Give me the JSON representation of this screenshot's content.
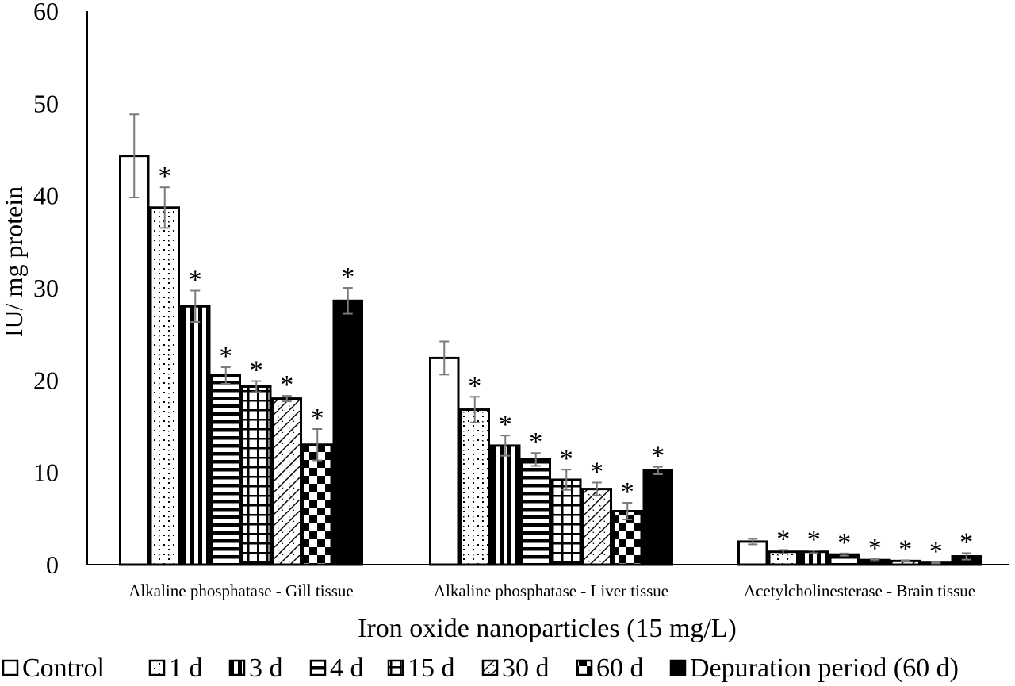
{
  "chart_data": {
    "type": "bar",
    "title": "",
    "xlabel": "Iron oxide nanoparticles (15 mg/L)",
    "ylabel": "IU/ mg protein",
    "ylim": [
      0,
      60
    ],
    "yticks": [
      "0",
      "10",
      "20",
      "30",
      "40",
      "50",
      "60"
    ],
    "grid": false,
    "legend_position": "bottom",
    "categories": [
      "Alkaline phosphatase - Gill tissue",
      "Alkaline phosphatase - Liver tissue",
      "Acetylcholinesterase - Brain tissue"
    ],
    "significance_marker": "*",
    "series": [
      {
        "name": "Control",
        "pattern": "empty",
        "values": [
          44.3,
          22.4,
          2.5
        ],
        "errors": [
          4.5,
          1.8,
          0.3
        ],
        "significant": [
          false,
          false,
          false
        ]
      },
      {
        "name": "1 d",
        "pattern": "dots",
        "values": [
          38.7,
          16.8,
          1.4
        ],
        "errors": [
          2.2,
          1.4,
          0.2
        ],
        "significant": [
          true,
          true,
          true
        ]
      },
      {
        "name": "3 d",
        "pattern": "vertical",
        "values": [
          28.0,
          12.9,
          1.4
        ],
        "errors": [
          1.7,
          1.1,
          0.15
        ],
        "significant": [
          true,
          true,
          true
        ]
      },
      {
        "name": "4 d",
        "pattern": "horizontal",
        "values": [
          20.5,
          11.4,
          1.1
        ],
        "errors": [
          0.9,
          0.7,
          0.12
        ],
        "significant": [
          true,
          true,
          true
        ]
      },
      {
        "name": "15 d",
        "pattern": "grid",
        "values": [
          19.3,
          9.2,
          0.5
        ],
        "errors": [
          0.6,
          1.1,
          0.1
        ],
        "significant": [
          true,
          true,
          true
        ]
      },
      {
        "name": "30 d",
        "pattern": "diagonal",
        "values": [
          18.0,
          8.2,
          0.4
        ],
        "errors": [
          0.3,
          0.7,
          0.08
        ],
        "significant": [
          true,
          true,
          true
        ]
      },
      {
        "name": "60 d",
        "pattern": "checker",
        "values": [
          13.0,
          5.8,
          0.2
        ],
        "errors": [
          1.7,
          0.9,
          0.06
        ],
        "significant": [
          true,
          true,
          true
        ]
      },
      {
        "name": "Depuration period (60 d)",
        "pattern": "solid",
        "values": [
          28.6,
          10.2,
          0.9
        ],
        "errors": [
          1.4,
          0.4,
          0.35
        ],
        "significant": [
          true,
          true,
          true
        ]
      }
    ]
  }
}
